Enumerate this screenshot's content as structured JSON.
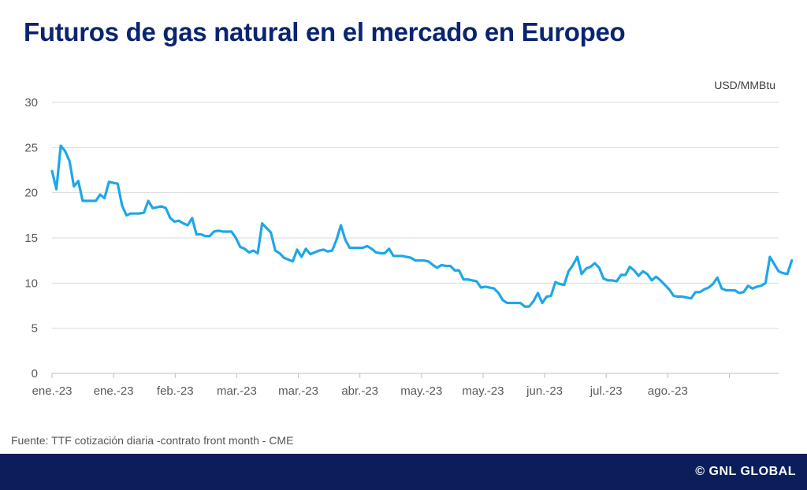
{
  "title": "Futuros de gas natural en el mercado en Europeo",
  "unit_label": "USD/MMBtu",
  "source": "Fuente: TTF cotización diaria -contrato front month - CME",
  "brand": "© GNL GLOBAL",
  "colors": {
    "line": "#1ea7e8",
    "title": "#0b2470",
    "footer": "#0b1e5b",
    "grid": "#d9d9d9"
  },
  "chart_data": {
    "type": "line",
    "title": "Futuros de gas natural en el mercado en Europeo",
    "ylabel": "USD/MMBtu",
    "ylim": [
      0,
      30
    ],
    "yticks": [
      0,
      5,
      10,
      15,
      20,
      25,
      30
    ],
    "grid": true,
    "xtick_labels": [
      "ene.-23",
      "ene.-23",
      "feb.-23",
      "mar.-23",
      "mar.-23",
      "abr.-23",
      "may.-23",
      "may.-23",
      "jun.-23",
      "jul.-23",
      "ago.-23"
    ],
    "x_range": [
      0,
      166
    ],
    "series": [
      {
        "values": [
          22.4,
          20.4,
          25.2,
          24.6,
          23.5,
          20.7,
          21.3,
          19.1,
          19.1,
          19.1,
          19.1,
          19.8,
          19.4,
          21.2,
          21.1,
          21.0,
          18.6,
          17.5,
          17.7,
          17.7,
          17.7,
          17.8,
          19.1,
          18.3,
          18.4,
          18.5,
          18.3,
          17.2,
          16.8,
          16.9,
          16.6,
          16.4,
          17.2,
          15.4,
          15.4,
          15.2,
          15.2,
          15.7,
          15.8,
          15.7,
          15.7,
          15.7,
          15.0,
          14.0,
          13.8,
          13.4,
          13.6,
          13.3,
          16.6,
          16.1,
          15.6,
          13.6,
          13.3,
          12.8,
          12.6,
          12.4,
          13.7,
          12.9,
          13.8,
          13.2,
          13.4,
          13.6,
          13.7,
          13.5,
          13.6,
          14.8,
          16.4,
          14.8,
          13.9,
          13.9,
          13.9,
          13.9,
          14.1,
          13.8,
          13.4,
          13.3,
          13.3,
          13.8,
          13.0,
          13.0,
          13.0,
          12.9,
          12.8,
          12.5,
          12.5,
          12.5,
          12.4,
          12.0,
          11.7,
          12.0,
          11.9,
          11.9,
          11.4,
          11.4,
          10.4,
          10.4,
          10.3,
          10.2,
          9.5,
          9.6,
          9.5,
          9.4,
          8.9,
          8.1,
          7.8,
          7.8,
          7.8,
          7.8,
          7.4,
          7.4,
          8.0,
          8.9,
          7.8,
          8.5,
          8.6,
          10.1,
          9.9,
          9.8,
          11.3,
          12.0,
          12.9,
          11.0,
          11.6,
          11.8,
          12.2,
          11.7,
          10.5,
          10.3,
          10.3,
          10.2,
          10.9,
          10.9,
          11.8,
          11.4,
          10.8,
          11.3,
          11.0,
          10.3,
          10.7,
          10.3,
          9.8,
          9.3,
          8.6,
          8.5,
          8.5,
          8.4,
          8.3,
          9.0,
          9.0,
          9.3,
          9.5,
          9.9,
          10.6,
          9.4,
          9.2,
          9.2,
          9.2,
          8.9,
          9.0,
          9.7,
          9.4,
          9.6,
          9.7,
          10.0,
          12.9,
          12.1,
          11.3,
          11.1,
          11.0,
          12.5
        ]
      }
    ]
  }
}
